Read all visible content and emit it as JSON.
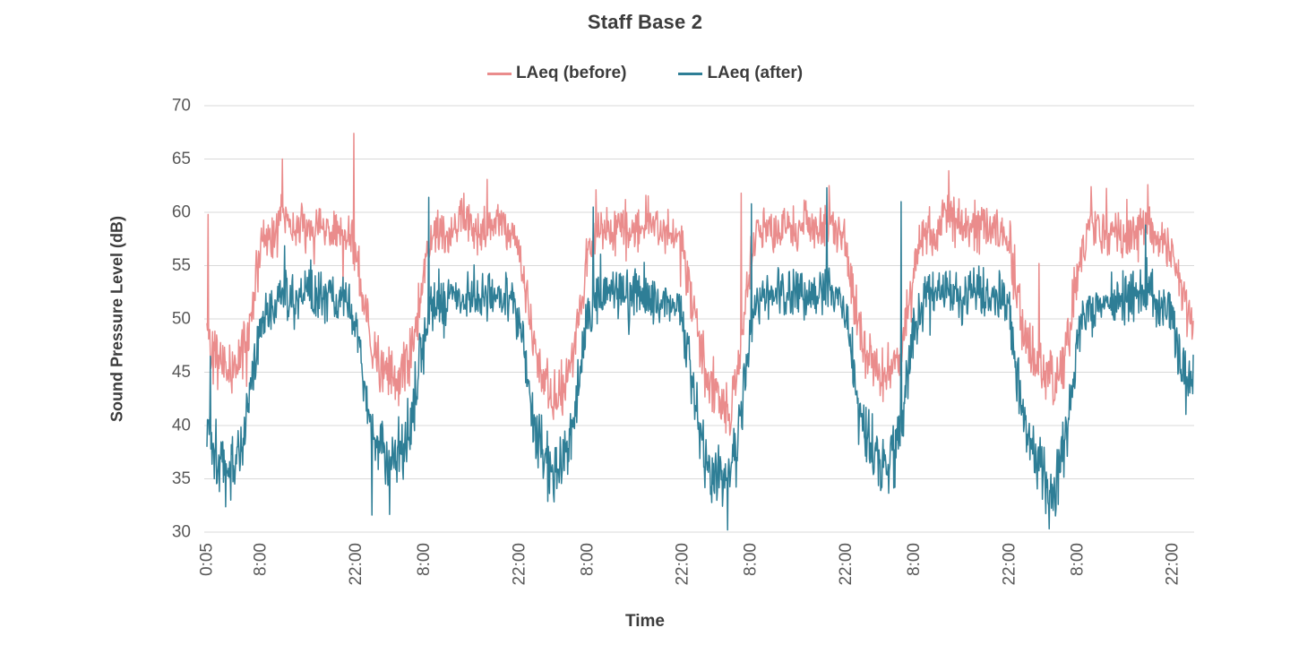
{
  "title": "Staff Base 2",
  "y_axis": {
    "label": "Sound Pressure Level (dB)",
    "min": 30,
    "max": 70,
    "ticks": [
      70,
      65,
      60,
      55,
      50,
      45,
      40,
      35,
      30
    ]
  },
  "x_axis": {
    "label": "Time",
    "ticks": [
      {
        "label": "0:05",
        "t": 0.0833
      },
      {
        "label": "8:00",
        "t": 8
      },
      {
        "label": "22:00",
        "t": 22
      },
      {
        "label": "8:00",
        "t": 32
      },
      {
        "label": "22:00",
        "t": 46
      },
      {
        "label": "8:00",
        "t": 56
      },
      {
        "label": "22:00",
        "t": 70
      },
      {
        "label": "8:00",
        "t": 80
      },
      {
        "label": "22:00",
        "t": 94
      },
      {
        "label": "8:00",
        "t": 104
      },
      {
        "label": "22:00",
        "t": 118
      },
      {
        "label": "8:00",
        "t": 128
      },
      {
        "label": "22:00",
        "t": 142
      }
    ]
  },
  "colors": {
    "grid": "#d9d9d9",
    "tick_text": "#595959",
    "label_text": "#3c3c3c"
  },
  "chart_data": {
    "type": "line",
    "title": "Staff Base 2",
    "xlabel": "Time",
    "ylabel": "Sound Pressure Level (dB)",
    "ylim": [
      30,
      70
    ],
    "grid": "horizontal",
    "legend_position": "top-center",
    "x_unit": "hours_from_day1_midnight",
    "start": 0.0833,
    "end": 145,
    "interval_minutes": 5,
    "series": [
      {
        "name": "LAeq (before)",
        "key": "before",
        "color": "#ea8c8c",
        "seed": 42,
        "day_amp": 1.9,
        "night_amp": 2.3,
        "hourly_mean": [
          49.5,
          47.5,
          46,
          45,
          45.5,
          46.5,
          48,
          53,
          56.5,
          57.5,
          58,
          60,
          59,
          58,
          58.5,
          58,
          58.5,
          58,
          58.5,
          58,
          57.5,
          58.5,
          56,
          51.5,
          48,
          46.5,
          45,
          44.5,
          44,
          45,
          46.5,
          50,
          55,
          57.5,
          58,
          58.5,
          58,
          59,
          59.5,
          58.5,
          58,
          58.5,
          59,
          59.5,
          58.5,
          58,
          56.5,
          52.5,
          48.5,
          46,
          44,
          42.5,
          43,
          44.5,
          47,
          51.5,
          56,
          57.5,
          58,
          58.5,
          58,
          59,
          58.5,
          58,
          59,
          59.5,
          58.5,
          58,
          58.5,
          58,
          57,
          53,
          49,
          46,
          44,
          42.5,
          41.5,
          41,
          44,
          50,
          55.5,
          58,
          59,
          58.5,
          58,
          59,
          58.5,
          58,
          59.5,
          58.5,
          58,
          59,
          58.5,
          58,
          57,
          52.5,
          48.5,
          46.5,
          45.5,
          44.5,
          45,
          45.5,
          46.5,
          50.5,
          55.5,
          57.5,
          58.5,
          58,
          59,
          60,
          59,
          58.5,
          58,
          58.5,
          59,
          58.5,
          58,
          57.5,
          57,
          53,
          49,
          47,
          46,
          45,
          44.5,
          45,
          46,
          49.5,
          54.5,
          57,
          58.5,
          58,
          57.5,
          58,
          58.5,
          57.5,
          58,
          58.5,
          59,
          58,
          57.5,
          57,
          56,
          53.5,
          51,
          50
        ]
      },
      {
        "name": "LAeq (after)",
        "key": "after",
        "color": "#2e7e96",
        "seed": 1337,
        "day_amp": 2.2,
        "night_amp": 2.8,
        "hourly_mean": [
          40.5,
          38.5,
          36.5,
          35.5,
          36.5,
          38,
          40.5,
          45.5,
          49.5,
          51,
          51.5,
          52.5,
          52,
          51.5,
          52,
          52.5,
          52,
          52.5,
          52,
          51.5,
          51.5,
          51,
          49.5,
          44.5,
          40,
          38.5,
          37.5,
          37,
          37.5,
          38,
          40,
          44,
          48.5,
          51,
          51.5,
          52,
          52.5,
          52,
          52.5,
          52,
          52.5,
          52,
          52.5,
          52,
          52,
          51.5,
          50,
          45,
          41,
          39,
          37,
          36,
          36.5,
          38,
          41,
          46,
          50,
          51.5,
          52,
          52.5,
          52,
          52.5,
          52,
          52.5,
          53,
          52.5,
          52,
          52.5,
          52,
          51.5,
          50.5,
          46,
          41,
          38,
          36,
          35.5,
          35,
          36,
          38.5,
          44,
          49.5,
          51.5,
          52.5,
          52,
          52.5,
          52,
          53,
          52.5,
          52,
          52.5,
          53,
          53.5,
          52.5,
          52,
          50.5,
          45.5,
          41,
          39,
          37.5,
          36,
          36.5,
          37.5,
          40,
          44.5,
          49.5,
          51.5,
          52,
          52.5,
          52.5,
          53,
          52.5,
          52,
          52.5,
          53,
          52.5,
          52,
          52.5,
          52,
          51,
          45.5,
          41,
          39,
          37.5,
          35,
          33.5,
          35,
          37.5,
          42,
          47.5,
          50.5,
          51.5,
          51,
          51.5,
          52,
          51.5,
          52,
          52.5,
          52,
          53.5,
          52.5,
          51.5,
          51,
          50,
          47,
          45,
          43.5
        ]
      }
    ],
    "events": [
      [
        0.25,
        "before",
        59.8
      ],
      [
        0.58,
        "after",
        46.5
      ],
      [
        3.6,
        "after",
        33.0
      ],
      [
        11.2,
        "before",
        65.0
      ],
      [
        21.7,
        "before",
        67.4
      ],
      [
        24.3,
        "after",
        31.6
      ],
      [
        32.7,
        "after",
        61.4
      ],
      [
        56.8,
        "after",
        60.5
      ],
      [
        64.6,
        "before",
        61.6
      ],
      [
        74.4,
        "after",
        34.5
      ],
      [
        77.0,
        "before",
        39.5
      ],
      [
        78.6,
        "before",
        61.8
      ],
      [
        80.1,
        "after",
        60.8
      ],
      [
        91.2,
        "after",
        62.3
      ],
      [
        91.5,
        "before",
        62.5
      ],
      [
        99.1,
        "after",
        33.9
      ],
      [
        101.2,
        "after",
        34.2
      ],
      [
        102.1,
        "after",
        61.0
      ],
      [
        109.1,
        "before",
        63.9
      ],
      [
        122.3,
        "before",
        55.2
      ],
      [
        123.8,
        "after",
        30.3
      ],
      [
        125.2,
        "after",
        32.6
      ],
      [
        130.0,
        "before",
        62.4
      ],
      [
        138.0,
        "after",
        58.8
      ],
      [
        138.3,
        "before",
        62.6
      ]
    ]
  }
}
